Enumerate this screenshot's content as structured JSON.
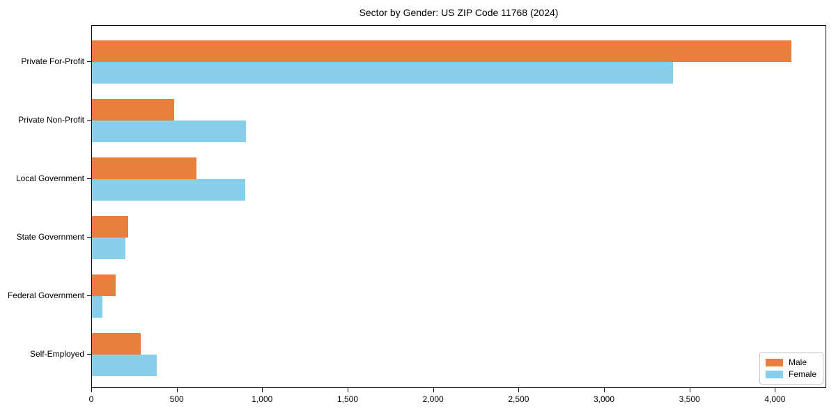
{
  "chart_data": {
    "type": "bar",
    "orientation": "horizontal",
    "title": "Sector by Gender: US ZIP Code 11768 (2024)",
    "categories": [
      "Private For-Profit",
      "Private Non-Profit",
      "Local Government",
      "State Government",
      "Federal Government",
      "Self-Employed"
    ],
    "series": [
      {
        "name": "Male",
        "color": "#e87d3e",
        "values": [
          4090,
          480,
          610,
          210,
          140,
          285
        ]
      },
      {
        "name": "Female",
        "color": "#87ceeb",
        "values": [
          3400,
          900,
          895,
          195,
          60,
          380
        ]
      }
    ],
    "xlabel": "",
    "ylabel": "",
    "xlim": [
      0,
      4300
    ],
    "xticks": [
      0,
      500,
      1000,
      1500,
      2000,
      2500,
      3000,
      3500,
      4000
    ],
    "xtick_labels": [
      "0",
      "500",
      "1,000",
      "1,500",
      "2,000",
      "2,500",
      "3,000",
      "3,500",
      "4,000"
    ],
    "grid": false,
    "legend": {
      "position": "lower right",
      "entries": [
        "Male",
        "Female"
      ]
    },
    "colors": {
      "male": "#e87d3e",
      "female": "#87ceeb",
      "spine": "#000000",
      "legend_border": "#c9c9c9"
    }
  }
}
